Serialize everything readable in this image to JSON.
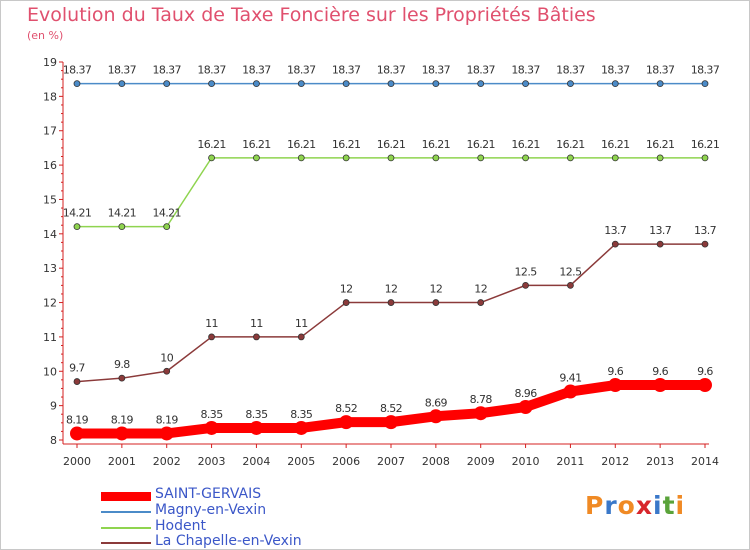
{
  "title": "Evolution du Taux de Taxe Foncière sur les Propriétés Bâties",
  "unit_label": "(en %)",
  "logo": {
    "text": "Proxiti",
    "letters": [
      "P",
      "r",
      "o",
      "x",
      "i",
      "t",
      "i"
    ],
    "colors": [
      "#f08a24",
      "#3a78c9",
      "#f08a24",
      "#d8262c",
      "#3a78c9",
      "#5aa33a",
      "#f08a24"
    ]
  },
  "chart_data": {
    "type": "line",
    "title": "Evolution du Taux de Taxe Foncière sur les Propriétés Bâties",
    "ylabel": "(en %)",
    "xlabel": "",
    "x": [
      "2000",
      "2001",
      "2002",
      "2003",
      "2004",
      "2005",
      "2006",
      "2007",
      "2008",
      "2009",
      "2010",
      "2011",
      "2012",
      "2013",
      "2014"
    ],
    "ylim": [
      8,
      19
    ],
    "yticks": [
      "8",
      "9",
      "10",
      "11",
      "12",
      "13",
      "14",
      "15",
      "16",
      "17",
      "18",
      "19"
    ],
    "grid": false,
    "legend_position": "bottom-left",
    "series": [
      {
        "name": "SAINT-GERVAIS",
        "color": "#ff0000",
        "values": [
          8.19,
          8.19,
          8.19,
          8.35,
          8.35,
          8.35,
          8.52,
          8.52,
          8.69,
          8.78,
          8.96,
          9.41,
          9.6,
          9.6,
          9.6
        ],
        "labels": [
          "8.19",
          "8.19",
          "8.19",
          "8.35",
          "8.35",
          "8.35",
          "8.52",
          "8.52",
          "8.69",
          "8.78",
          "8.96",
          "9.41",
          "9.6",
          "9.6",
          "9.6"
        ]
      },
      {
        "name": "Magny-en-Vexin",
        "color": "#4b8bc8",
        "values": [
          18.37,
          18.37,
          18.37,
          18.37,
          18.37,
          18.37,
          18.37,
          18.37,
          18.37,
          18.37,
          18.37,
          18.37,
          18.37,
          18.37,
          18.37
        ],
        "labels": [
          "18.37",
          "18.37",
          "18.37",
          "18.37",
          "18.37",
          "18.37",
          "18.37",
          "18.37",
          "18.37",
          "18.37",
          "18.37",
          "18.37",
          "18.37",
          "18.37",
          "18.37"
        ]
      },
      {
        "name": "Hodent",
        "color": "#8fd44f",
        "values": [
          14.21,
          14.21,
          14.21,
          16.21,
          16.21,
          16.21,
          16.21,
          16.21,
          16.21,
          16.21,
          16.21,
          16.21,
          16.21,
          16.21,
          16.21
        ],
        "labels": [
          "14.21",
          "14.21",
          "14.21",
          "16.21",
          "16.21",
          "16.21",
          "16.21",
          "16.21",
          "16.21",
          "16.21",
          "16.21",
          "16.21",
          "16.21",
          "16.21",
          "16.21"
        ]
      },
      {
        "name": "La Chapelle-en-Vexin",
        "color": "#8b3a3a",
        "values": [
          9.7,
          9.8,
          10,
          11,
          11,
          11,
          12,
          12,
          12,
          12,
          12.5,
          12.5,
          13.7,
          13.7,
          13.7
        ],
        "labels": [
          "9.7",
          "9.8",
          "10",
          "11",
          "11",
          "11",
          "12",
          "12",
          "12",
          "12",
          "12.5",
          "12.5",
          "13.7",
          "13.7",
          "13.7"
        ]
      }
    ]
  }
}
